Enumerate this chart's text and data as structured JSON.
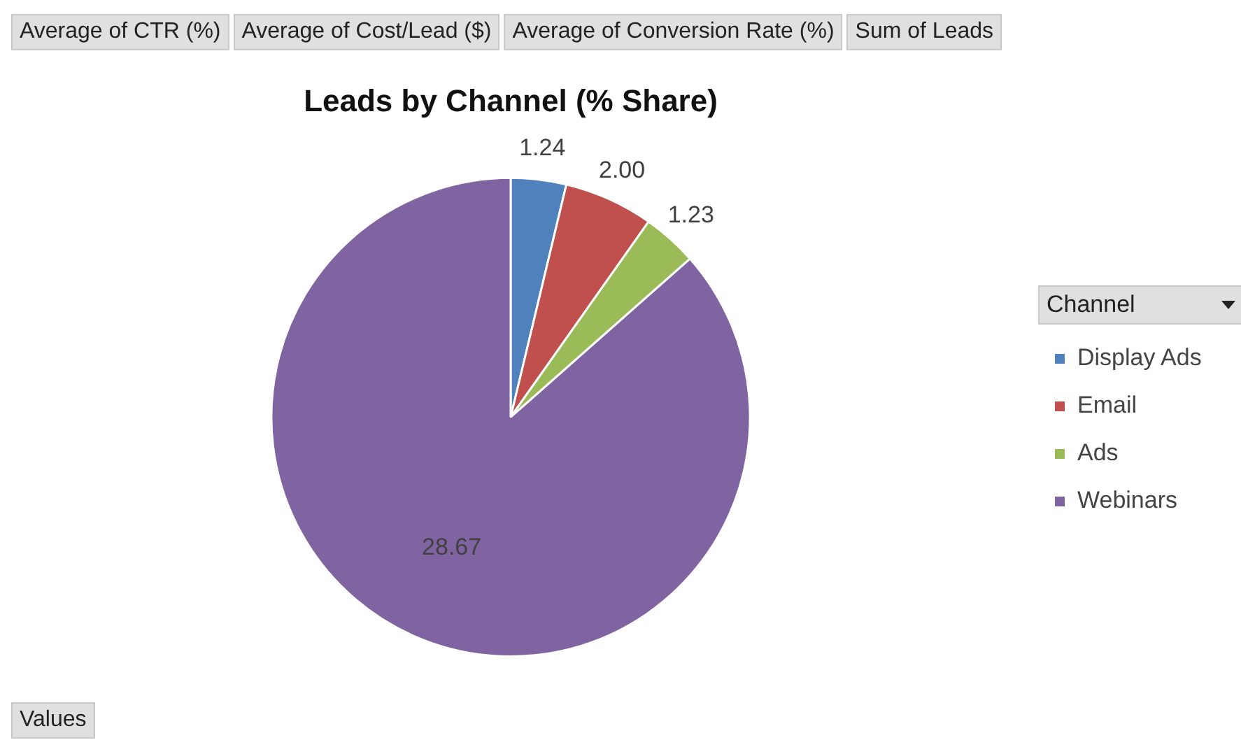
{
  "chart_data": {
    "type": "pie",
    "title": "Leads by Channel (% Share)",
    "legend_title": "Channel",
    "legend": "right",
    "categories": [
      "Display Ads",
      "Email",
      "Ads",
      "Webinars"
    ],
    "values": [
      1.24,
      2.0,
      1.23,
      28.67
    ],
    "value_labels": [
      "1.24",
      "2.00",
      "1.23",
      "28.67"
    ],
    "colors": [
      "#4f81bd",
      "#c0504d",
      "#9bbb59",
      "#8064a2"
    ],
    "annotations": [
      "Average of CTR (%)",
      "Average of Cost/Lead ($)",
      "Average of Conversion Rate (%)",
      "Sum of Leads",
      "Values"
    ]
  }
}
